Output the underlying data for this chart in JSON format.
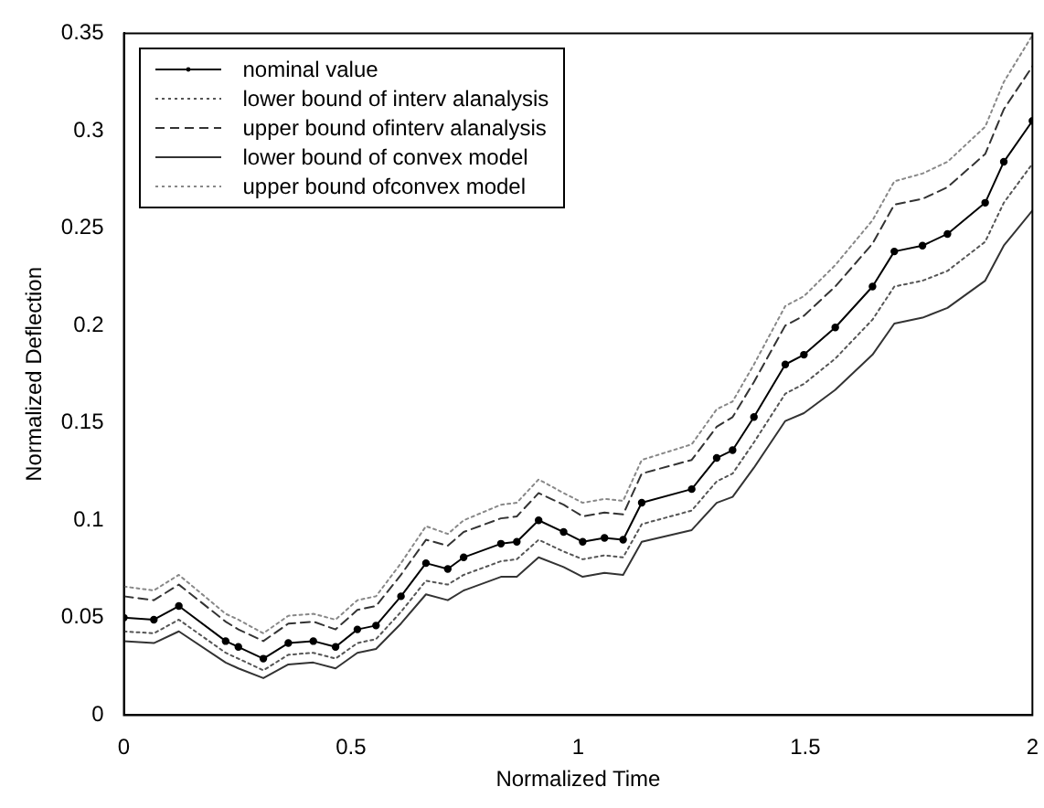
{
  "chart_data": {
    "type": "line",
    "xlabel": "Normalized Time",
    "ylabel": "Normalized Deflection",
    "x": [
      0,
      0.066,
      0.121,
      0.224,
      0.252,
      0.307,
      0.362,
      0.417,
      0.466,
      0.514,
      0.555,
      0.61,
      0.665,
      0.713,
      0.748,
      0.83,
      0.865,
      0.913,
      0.968,
      1.01,
      1.058,
      1.099,
      1.14,
      1.25,
      1.305,
      1.34,
      1.387,
      1.456,
      1.497,
      1.566,
      1.648,
      1.696,
      1.758,
      1.813,
      1.896,
      1.937,
      2.0
    ],
    "series": [
      {
        "name": "nominal value",
        "color": "#000000",
        "line_style": "solid",
        "marker": "circle",
        "values": [
          0.05,
          0.049,
          0.056,
          0.038,
          0.035,
          0.029,
          0.037,
          0.038,
          0.035,
          0.044,
          0.046,
          0.061,
          0.078,
          0.075,
          0.081,
          0.088,
          0.089,
          0.1,
          0.094,
          0.089,
          0.091,
          0.09,
          0.109,
          0.116,
          0.132,
          0.136,
          0.153,
          0.18,
          0.185,
          0.199,
          0.22,
          0.238,
          0.241,
          0.247,
          0.263,
          0.284,
          0.305
        ]
      },
      {
        "name": "lower bound of interv alanalysis",
        "color": "#555555",
        "line_style": "dotted",
        "values": [
          0.043,
          0.042,
          0.049,
          0.032,
          0.029,
          0.023,
          0.031,
          0.032,
          0.029,
          0.037,
          0.039,
          0.053,
          0.069,
          0.067,
          0.072,
          0.079,
          0.08,
          0.09,
          0.084,
          0.08,
          0.082,
          0.081,
          0.098,
          0.105,
          0.12,
          0.124,
          0.14,
          0.165,
          0.17,
          0.183,
          0.203,
          0.22,
          0.223,
          0.228,
          0.243,
          0.263,
          0.283
        ]
      },
      {
        "name": "upper bound ofinterv alanalysis",
        "color": "#333333",
        "line_style": "dashed",
        "values": [
          0.061,
          0.059,
          0.067,
          0.048,
          0.044,
          0.038,
          0.047,
          0.048,
          0.044,
          0.054,
          0.056,
          0.072,
          0.09,
          0.087,
          0.094,
          0.101,
          0.102,
          0.114,
          0.108,
          0.102,
          0.104,
          0.103,
          0.124,
          0.131,
          0.148,
          0.153,
          0.171,
          0.2,
          0.205,
          0.22,
          0.242,
          0.262,
          0.265,
          0.271,
          0.288,
          0.311,
          0.333
        ]
      },
      {
        "name": "lower bound of convex model",
        "color": "#333333",
        "line_style": "solid",
        "values": [
          0.038,
          0.037,
          0.043,
          0.027,
          0.024,
          0.019,
          0.026,
          0.027,
          0.024,
          0.032,
          0.034,
          0.047,
          0.062,
          0.059,
          0.064,
          0.071,
          0.071,
          0.081,
          0.076,
          0.071,
          0.073,
          0.072,
          0.089,
          0.095,
          0.109,
          0.112,
          0.127,
          0.151,
          0.155,
          0.167,
          0.185,
          0.201,
          0.204,
          0.209,
          0.223,
          0.241,
          0.259
        ]
      },
      {
        "name": "upper bound ofconvex model",
        "color": "#888888",
        "line_style": "dotted",
        "values": [
          0.066,
          0.064,
          0.072,
          0.052,
          0.049,
          0.042,
          0.051,
          0.052,
          0.049,
          0.059,
          0.061,
          0.078,
          0.097,
          0.093,
          0.1,
          0.108,
          0.109,
          0.121,
          0.114,
          0.109,
          0.111,
          0.11,
          0.131,
          0.139,
          0.157,
          0.161,
          0.18,
          0.21,
          0.215,
          0.231,
          0.254,
          0.274,
          0.278,
          0.284,
          0.302,
          0.325,
          0.349
        ]
      }
    ],
    "xlim": [
      0,
      2
    ],
    "xticks": [
      0,
      0.5,
      1,
      1.5,
      2
    ],
    "ylim": [
      0,
      0.35
    ],
    "yticks": [
      0,
      0.05,
      0.1,
      0.15,
      0.2,
      0.25,
      0.3,
      0.35
    ],
    "grid": false,
    "legend": "top left"
  }
}
